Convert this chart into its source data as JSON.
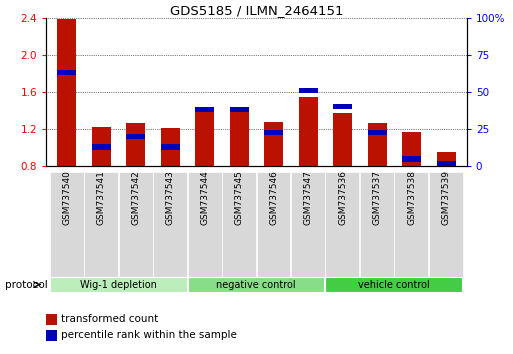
{
  "title": "GDS5185 / ILMN_2464151",
  "samples": [
    "GSM737540",
    "GSM737541",
    "GSM737542",
    "GSM737543",
    "GSM737544",
    "GSM737545",
    "GSM737546",
    "GSM737547",
    "GSM737536",
    "GSM737537",
    "GSM737538",
    "GSM737539"
  ],
  "red_values": [
    2.39,
    1.22,
    1.27,
    1.21,
    1.38,
    1.38,
    1.28,
    1.55,
    1.37,
    1.27,
    1.17,
    0.95
  ],
  "blue_percentile": [
    63,
    13,
    20,
    13,
    38,
    38,
    23,
    51,
    40,
    23,
    5,
    2
  ],
  "ylim_left": [
    0.8,
    2.4
  ],
  "ylim_right": [
    0,
    100
  ],
  "yticks_left": [
    0.8,
    1.2,
    1.6,
    2.0,
    2.4
  ],
  "yticks_right": [
    0,
    25,
    50,
    75,
    100
  ],
  "ytick_labels_right": [
    "0",
    "25",
    "50",
    "75",
    "100%"
  ],
  "groups": [
    {
      "label": "Wig-1 depletion",
      "start": 0,
      "end": 4,
      "color": "#bbeebb"
    },
    {
      "label": "negative control",
      "start": 4,
      "end": 8,
      "color": "#88dd88"
    },
    {
      "label": "vehicle control",
      "start": 8,
      "end": 12,
      "color": "#44cc44"
    }
  ],
  "legend_red": "transformed count",
  "legend_blue": "percentile rank within the sample",
  "bar_color": "#bb1100",
  "blue_color": "#0000bb",
  "protocol_label": "protocol",
  "bar_width": 0.55,
  "grid_color": "black"
}
